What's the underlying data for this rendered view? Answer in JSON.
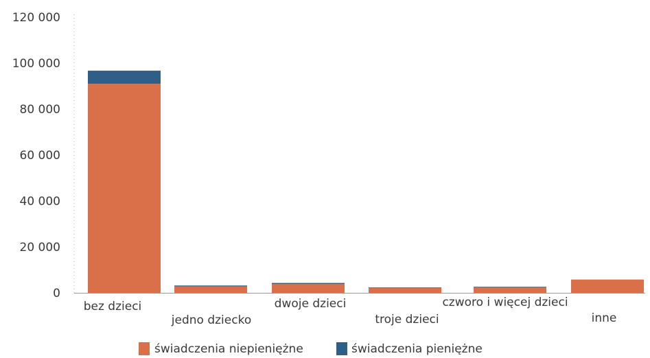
{
  "chart_data": {
    "type": "bar",
    "stacked": true,
    "categories": [
      "bez dzieci",
      "jedno dziecko",
      "dwoje dzieci",
      "troje dzieci",
      "czworo i więcej dzieci",
      "inne"
    ],
    "series": [
      {
        "name": "świadczenia niepieniężne",
        "color": "#d9704a",
        "values": [
          91000,
          2800,
          3800,
          2200,
          2500,
          5800
        ]
      },
      {
        "name": "świadczenia pieniężne",
        "color": "#2f5f86",
        "values": [
          5700,
          400,
          500,
          200,
          200,
          0
        ]
      }
    ],
    "yticks": [
      0,
      20000,
      40000,
      60000,
      80000,
      100000,
      120000
    ],
    "ytick_labels": [
      "0",
      "20 000",
      "40 000",
      "60 000",
      "80 000",
      "100 000",
      "120 000"
    ],
    "ylim": [
      0,
      120000
    ],
    "grid": false,
    "legend_position": "bottom",
    "title": "",
    "xlabel": "",
    "ylabel": ""
  }
}
